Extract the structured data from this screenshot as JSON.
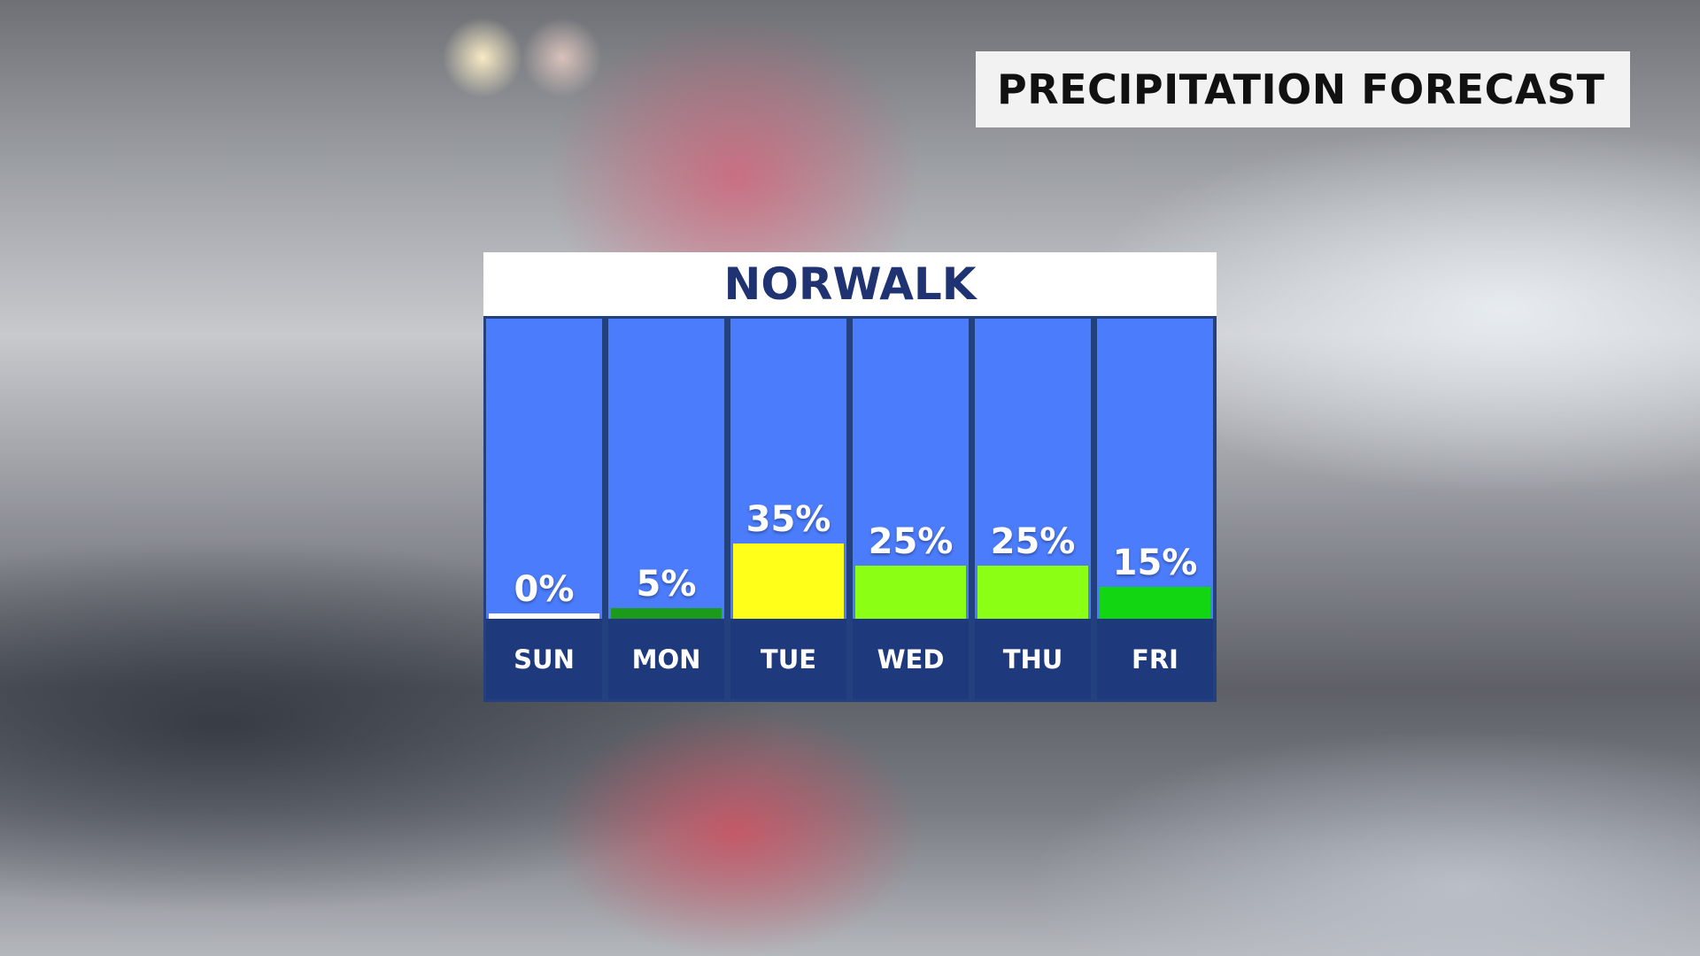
{
  "title": "PRECIPITATION FORECAST",
  "chart_data": {
    "type": "bar",
    "title": "NORWALK",
    "categories": [
      "SUN",
      "MON",
      "TUE",
      "WED",
      "THU",
      "FRI"
    ],
    "values": [
      0,
      5,
      35,
      25,
      25,
      15
    ],
    "labels": [
      "0%",
      "5%",
      "35%",
      "25%",
      "25%",
      "15%"
    ],
    "colors": [
      "#ffffff",
      "#1b9a1b",
      "#ffff1a",
      "#8bff14",
      "#8bff14",
      "#13d613"
    ],
    "ylim": [
      0,
      100
    ],
    "column_color": "#4b7cfc",
    "label_band_color": "#1e3a7c"
  }
}
